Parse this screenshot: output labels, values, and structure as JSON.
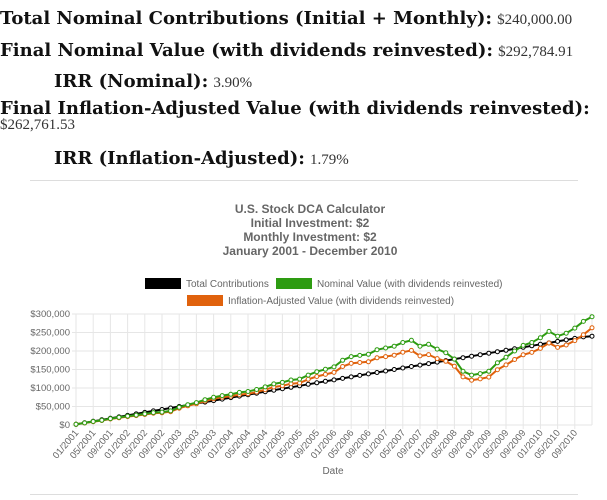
{
  "stats": {
    "total_contrib": {
      "label": "Total Nominal Contributions (Initial + Monthly):",
      "value": "$240,000.00"
    },
    "final_nominal": {
      "label": "Final Nominal Value (with dividends reinvested):",
      "value": "$292,784.91"
    },
    "irr_nominal": {
      "label": "IRR (Nominal):",
      "value": "3.90%"
    },
    "final_infl": {
      "label": "Final Inflation-Adjusted Value (with dividends reinvested):",
      "value": "$262,761.53"
    },
    "irr_infl": {
      "label": "IRR (Inflation-Adjusted):",
      "value": "1.79%"
    }
  },
  "colors": {
    "contrib": "#000000",
    "nominal": "#2e9c12",
    "inflation": "#e0620d",
    "grid": "#e6e6e6"
  },
  "chart_data": {
    "type": "line",
    "title": [
      "U.S. Stock DCA Calculator",
      "Initial Investment: $2",
      "Monthly Investment: $2",
      "January 2001 - December 2010"
    ],
    "xlabel": "Date",
    "ylabel": "",
    "ylim": [
      0,
      300000
    ],
    "y_ticks": [
      "$0",
      "$50,000",
      "$100,000",
      "$150,000",
      "$200,000",
      "$250,000",
      "$300,000"
    ],
    "x_ticks": [
      "01/2001",
      "05/2001",
      "09/2001",
      "01/2002",
      "05/2002",
      "09/2002",
      "01/2003",
      "05/2003",
      "09/2003",
      "01/2004",
      "05/2004",
      "09/2004",
      "01/2005",
      "05/2005",
      "09/2005",
      "01/2006",
      "05/2006",
      "09/2006",
      "01/2007",
      "05/2007",
      "09/2007",
      "01/2008",
      "05/2008",
      "09/2008",
      "01/2009",
      "05/2009",
      "09/2009",
      "01/2010",
      "05/2010",
      "09/2010"
    ],
    "legend_position": "top",
    "series": [
      {
        "name": "Total Contributions",
        "values": [
          2000,
          6000,
          10000,
          14000,
          18000,
          22000,
          26000,
          30000,
          34000,
          38000,
          42000,
          46000,
          50000,
          54000,
          58000,
          62000,
          66000,
          70000,
          74000,
          78000,
          82000,
          86000,
          90000,
          94000,
          98000,
          102000,
          106000,
          110000,
          114000,
          118000,
          122000,
          126000,
          130000,
          134000,
          138000,
          142000,
          146000,
          150000,
          154000,
          158000,
          162000,
          166000,
          170000,
          174000,
          178000,
          182000,
          186000,
          190000,
          194000,
          198000,
          202000,
          206000,
          210000,
          214000,
          218000,
          222000,
          226000,
          230000,
          234000,
          238000,
          240000
        ]
      },
      {
        "name": "Nominal Value (with dividends reinvested)",
        "values": [
          2000,
          5800,
          9500,
          12800,
          17200,
          20500,
          24000,
          26800,
          30000,
          33500,
          34800,
          38000,
          48000,
          55000,
          60500,
          68500,
          75000,
          79500,
          83000,
          88000,
          90500,
          96000,
          103000,
          111000,
          115000,
          121500,
          124000,
          135000,
          144000,
          150500,
          157000,
          175000,
          185000,
          188000,
          191000,
          203500,
          208000,
          213000,
          223000,
          229000,
          213000,
          218000,
          205000,
          195500,
          178000,
          145000,
          135000,
          139000,
          145000,
          168000,
          183000,
          200000,
          215000,
          223000,
          236000,
          253000,
          240000,
          248000,
          262000,
          280000,
          292785
        ]
      },
      {
        "name": "Inflation-Adjusted Value (with dividends reinvested)",
        "values": [
          2000,
          5500,
          9000,
          12200,
          16300,
          19500,
          22800,
          25500,
          28500,
          31800,
          33000,
          36000,
          45500,
          52000,
          57200,
          64700,
          70700,
          74800,
          77800,
          82200,
          84400,
          89200,
          95500,
          102600,
          106000,
          111700,
          113600,
          123500,
          131200,
          136800,
          142200,
          158000,
          166500,
          168800,
          170800,
          181600,
          185000,
          188700,
          196800,
          201500,
          186800,
          190400,
          179500,
          172200,
          159000,
          130000,
          121000,
          124500,
          129500,
          149500,
          162400,
          176900,
          189600,
          196200,
          207000,
          221500,
          209600,
          216200,
          228000,
          244000,
          262762
        ]
      }
    ]
  }
}
